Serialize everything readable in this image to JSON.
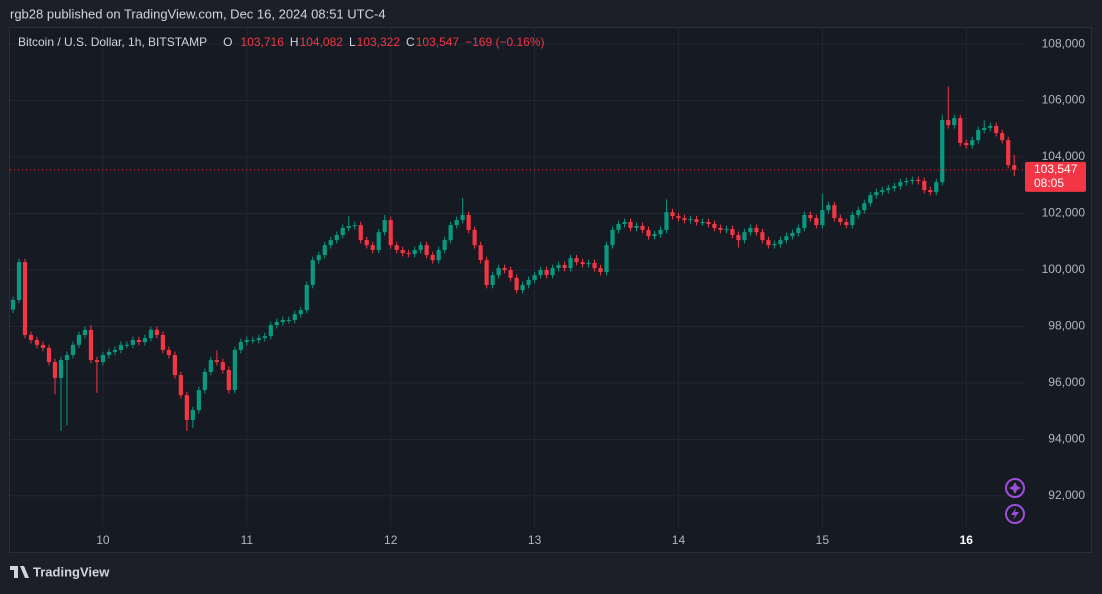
{
  "publish_line": "rgb28 published on TradingView.com, Dec 16, 2024 08:51 UTC-4",
  "footer": {
    "brand": "TradingView"
  },
  "chart_data": {
    "type": "candlestick",
    "legend": {
      "symbol": "Bitcoin / U.S. Dollar, 1h, BITSTAMP",
      "o_label": "O",
      "o": "103,716",
      "h_label": "H",
      "h": "104,082",
      "l_label": "L",
      "l": "103,322",
      "c_label": "C",
      "c": "103,547",
      "change": "−169 (−0.16%)"
    },
    "price_tag": {
      "price": "103,547",
      "countdown": "08:05"
    },
    "up_color": "#089981",
    "down_color": "#f23645",
    "grid": true,
    "ylim": [
      90900,
      108570
    ],
    "yticks": [
      {
        "value": 92000,
        "label": "92,000"
      },
      {
        "value": 94000,
        "label": "94,000"
      },
      {
        "value": 96000,
        "label": "96,000"
      },
      {
        "value": 98000,
        "label": "98,000"
      },
      {
        "value": 100000,
        "label": "100,000"
      },
      {
        "value": 102000,
        "label": "102,000"
      },
      {
        "value": 104000,
        "label": "104,000"
      },
      {
        "value": 106000,
        "label": "106,000"
      },
      {
        "value": 108000,
        "label": "108,000"
      }
    ],
    "xlim": [
      -0.5,
      168.8
    ],
    "xticks": [
      {
        "value": 15,
        "label": "10"
      },
      {
        "value": 39,
        "label": "11"
      },
      {
        "value": 63,
        "label": "12"
      },
      {
        "value": 87,
        "label": "13"
      },
      {
        "value": 111,
        "label": "14"
      },
      {
        "value": 135,
        "label": "15"
      },
      {
        "value": 159,
        "label": "16"
      }
    ],
    "candles": [
      [
        98600,
        99060,
        98480,
        98940
      ],
      [
        98940,
        100400,
        98820,
        100280
      ],
      [
        100280,
        100400,
        97580,
        97700
      ],
      [
        97700,
        97820,
        97400,
        97520
      ],
      [
        97520,
        97640,
        97230,
        97350
      ],
      [
        97350,
        97470,
        97120,
        97240
      ],
      [
        97240,
        97360,
        96620,
        96740
      ],
      [
        96740,
        96860,
        95600,
        96180
      ],
      [
        96180,
        96930,
        94300,
        96810
      ],
      [
        96810,
        97110,
        94500,
        96990
      ],
      [
        96990,
        97470,
        96870,
        97350
      ],
      [
        97350,
        97820,
        97230,
        97700
      ],
      [
        97700,
        98000,
        97580,
        97880
      ],
      [
        97880,
        98050,
        96700,
        96810
      ],
      [
        96810,
        96930,
        95650,
        96740
      ],
      [
        96740,
        97110,
        96620,
        96990
      ],
      [
        96990,
        97220,
        96870,
        97100
      ],
      [
        97100,
        97290,
        96980,
        97170
      ],
      [
        97170,
        97470,
        97050,
        97350
      ],
      [
        97350,
        97470,
        97230,
        97350
      ],
      [
        97350,
        97640,
        97230,
        97520
      ],
      [
        97520,
        97640,
        97330,
        97450
      ],
      [
        97450,
        97710,
        97330,
        97590
      ],
      [
        97590,
        98000,
        97470,
        97880
      ],
      [
        97880,
        98000,
        97580,
        97700
      ],
      [
        97700,
        97820,
        97050,
        97170
      ],
      [
        97170,
        97290,
        96870,
        96990
      ],
      [
        96990,
        97110,
        96160,
        96280
      ],
      [
        96280,
        96400,
        95450,
        95570
      ],
      [
        95570,
        95690,
        94300,
        94690
      ],
      [
        94690,
        95160,
        94400,
        95040
      ],
      [
        95040,
        95870,
        94920,
        95750
      ],
      [
        95750,
        96510,
        95630,
        96390
      ],
      [
        96390,
        96930,
        96270,
        96810
      ],
      [
        96810,
        97150,
        96620,
        96740
      ],
      [
        96740,
        96860,
        96340,
        96460
      ],
      [
        96460,
        96580,
        95630,
        95750
      ],
      [
        95750,
        97290,
        95630,
        97170
      ],
      [
        97170,
        97570,
        97050,
        97450
      ],
      [
        97450,
        97640,
        97330,
        97520
      ],
      [
        97520,
        97640,
        97400,
        97520
      ],
      [
        97520,
        97710,
        97400,
        97590
      ],
      [
        97590,
        97780,
        97470,
        97660
      ],
      [
        97660,
        98170,
        97540,
        98050
      ],
      [
        98050,
        98280,
        97930,
        98160
      ],
      [
        98160,
        98350,
        98040,
        98230
      ],
      [
        98230,
        98350,
        98110,
        98230
      ],
      [
        98230,
        98560,
        98110,
        98440
      ],
      [
        98440,
        98700,
        98320,
        98580
      ],
      [
        98580,
        99590,
        98460,
        99470
      ],
      [
        99470,
        100470,
        99350,
        100350
      ],
      [
        100350,
        100650,
        100230,
        100530
      ],
      [
        100530,
        101000,
        100410,
        100880
      ],
      [
        100880,
        101180,
        100760,
        101060
      ],
      [
        101060,
        101360,
        100940,
        101240
      ],
      [
        101240,
        101610,
        101120,
        101490
      ],
      [
        101490,
        101900,
        101370,
        101560
      ],
      [
        101560,
        101710,
        101440,
        101590
      ],
      [
        101590,
        101710,
        100940,
        101060
      ],
      [
        101060,
        101180,
        100760,
        100880
      ],
      [
        100880,
        101000,
        100590,
        100710
      ],
      [
        100710,
        101460,
        100590,
        101340
      ],
      [
        101340,
        101950,
        101220,
        101770
      ],
      [
        101770,
        101890,
        100760,
        100880
      ],
      [
        100880,
        101000,
        100590,
        100710
      ],
      [
        100710,
        100830,
        100480,
        100600
      ],
      [
        100600,
        100720,
        100450,
        100570
      ],
      [
        100570,
        100830,
        100450,
        100710
      ],
      [
        100710,
        101000,
        100590,
        100880
      ],
      [
        100880,
        101000,
        100410,
        100530
      ],
      [
        100530,
        100650,
        100230,
        100350
      ],
      [
        100350,
        100830,
        100230,
        100710
      ],
      [
        100710,
        101180,
        100590,
        101060
      ],
      [
        101060,
        101710,
        100940,
        101590
      ],
      [
        101590,
        101890,
        101470,
        101770
      ],
      [
        101770,
        102550,
        101650,
        101950
      ],
      [
        101950,
        102070,
        101300,
        101420
      ],
      [
        101420,
        101540,
        100760,
        100880
      ],
      [
        100880,
        101000,
        100230,
        100350
      ],
      [
        100350,
        100470,
        99350,
        99470
      ],
      [
        99470,
        99940,
        99350,
        99820
      ],
      [
        99820,
        100190,
        99700,
        100070
      ],
      [
        100070,
        100190,
        99880,
        100000
      ],
      [
        100000,
        100120,
        99600,
        99720
      ],
      [
        99720,
        99840,
        99170,
        99290
      ],
      [
        99290,
        99590,
        99170,
        99470
      ],
      [
        99470,
        99770,
        99350,
        99650
      ],
      [
        99650,
        99940,
        99530,
        99820
      ],
      [
        99820,
        100120,
        99700,
        100000
      ],
      [
        100000,
        100120,
        99700,
        99820
      ],
      [
        99820,
        100190,
        99700,
        100070
      ],
      [
        100070,
        100300,
        99950,
        100180
      ],
      [
        100180,
        100300,
        99950,
        100070
      ],
      [
        100070,
        100540,
        99950,
        100420
      ],
      [
        100420,
        100540,
        100160,
        100280
      ],
      [
        100280,
        100400,
        100090,
        100210
      ],
      [
        100210,
        100370,
        100090,
        100250
      ],
      [
        100250,
        100370,
        99950,
        100070
      ],
      [
        100070,
        100190,
        99810,
        99930
      ],
      [
        99930,
        101000,
        99810,
        100880
      ],
      [
        100880,
        101540,
        100760,
        101420
      ],
      [
        101420,
        101750,
        101300,
        101630
      ],
      [
        101630,
        101820,
        101510,
        101700
      ],
      [
        101700,
        101820,
        101370,
        101490
      ],
      [
        101490,
        101680,
        101370,
        101560
      ],
      [
        101560,
        101680,
        101300,
        101420
      ],
      [
        101420,
        101540,
        101080,
        101200
      ],
      [
        101200,
        101390,
        101080,
        101270
      ],
      [
        101270,
        101540,
        101150,
        101420
      ],
      [
        101420,
        102500,
        101300,
        102050
      ],
      [
        102050,
        102170,
        101790,
        101910
      ],
      [
        101910,
        102030,
        101720,
        101840
      ],
      [
        101840,
        101960,
        101650,
        101770
      ],
      [
        101770,
        101920,
        101650,
        101800
      ],
      [
        101800,
        101920,
        101580,
        101700
      ],
      [
        101700,
        101820,
        101580,
        101700
      ],
      [
        101700,
        101820,
        101510,
        101630
      ],
      [
        101630,
        101750,
        101370,
        101490
      ],
      [
        101490,
        101610,
        101300,
        101420
      ],
      [
        101420,
        101570,
        101300,
        101450
      ],
      [
        101450,
        101570,
        101120,
        101240
      ],
      [
        101240,
        101360,
        100800,
        101060
      ],
      [
        101060,
        101460,
        100940,
        101340
      ],
      [
        101340,
        101610,
        101220,
        101490
      ],
      [
        101490,
        101610,
        101220,
        101340
      ],
      [
        101340,
        101460,
        100940,
        101060
      ],
      [
        101060,
        101180,
        100760,
        100880
      ],
      [
        100880,
        101040,
        100760,
        100920
      ],
      [
        100920,
        101180,
        100800,
        101060
      ],
      [
        101060,
        101320,
        100940,
        101200
      ],
      [
        101200,
        101430,
        101080,
        101310
      ],
      [
        101310,
        101610,
        101190,
        101490
      ],
      [
        101490,
        102070,
        101370,
        101950
      ],
      [
        101950,
        102070,
        101720,
        101840
      ],
      [
        101840,
        101960,
        101470,
        101590
      ],
      [
        101590,
        102700,
        101470,
        102120
      ],
      [
        102120,
        102420,
        102000,
        102300
      ],
      [
        102300,
        102420,
        101720,
        101840
      ],
      [
        101840,
        101960,
        101580,
        101700
      ],
      [
        101700,
        101820,
        101470,
        101590
      ],
      [
        101590,
        102070,
        101470,
        101950
      ],
      [
        101950,
        102240,
        101830,
        102120
      ],
      [
        102120,
        102490,
        102000,
        102370
      ],
      [
        102370,
        102770,
        102250,
        102650
      ],
      [
        102650,
        102880,
        102530,
        102760
      ],
      [
        102760,
        102950,
        102640,
        102830
      ],
      [
        102830,
        103020,
        102710,
        102900
      ],
      [
        102900,
        103090,
        102780,
        102970
      ],
      [
        102970,
        103230,
        102850,
        103110
      ],
      [
        103110,
        103270,
        102990,
        103150
      ],
      [
        103150,
        103310,
        103030,
        103190
      ],
      [
        103190,
        103310,
        103030,
        103150
      ],
      [
        103150,
        103270,
        102710,
        102830
      ],
      [
        102830,
        102950,
        102640,
        102760
      ],
      [
        102760,
        103230,
        102640,
        103110
      ],
      [
        103110,
        105500,
        102990,
        105310
      ],
      [
        105310,
        106500,
        105010,
        105130
      ],
      [
        105130,
        105500,
        105010,
        105380
      ],
      [
        105380,
        105500,
        104380,
        104500
      ],
      [
        104500,
        104620,
        104300,
        104420
      ],
      [
        104420,
        104720,
        104300,
        104600
      ],
      [
        104600,
        105080,
        104480,
        104960
      ],
      [
        104960,
        105300,
        104840,
        105030
      ],
      [
        105030,
        105220,
        104910,
        105100
      ],
      [
        105100,
        105220,
        104730,
        104850
      ],
      [
        104850,
        104970,
        104480,
        104600
      ],
      [
        104600,
        104720,
        103600,
        103716
      ],
      [
        103716,
        104082,
        103322,
        103547
      ]
    ]
  }
}
